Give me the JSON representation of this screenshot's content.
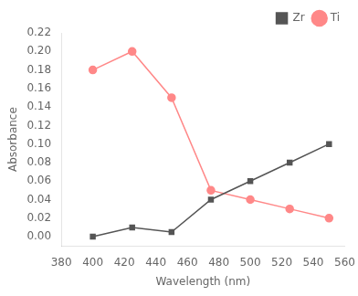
{
  "chart_data": {
    "type": "line",
    "x": [
      400,
      425,
      450,
      475,
      500,
      525,
      550
    ],
    "series": [
      {
        "name": "Zr",
        "color": "#555555",
        "marker": "square",
        "values": [
          0.0,
          0.01,
          0.005,
          0.04,
          0.06,
          0.08,
          0.1
        ]
      },
      {
        "name": "Ti",
        "color": "#ff8888",
        "marker": "circle",
        "values": [
          0.18,
          0.2,
          0.15,
          0.05,
          0.04,
          0.03,
          0.02
        ]
      }
    ],
    "xlabel": "Wavelength (nm)",
    "ylabel": "Absorbance",
    "xlim": [
      380,
      560
    ],
    "xticks": [
      380,
      400,
      420,
      440,
      460,
      480,
      500,
      520,
      540,
      560
    ],
    "ylim": [
      -0.01,
      0.22
    ],
    "yticks": [
      {
        "value": 0.0,
        "label": "0.00"
      },
      {
        "value": 0.02,
        "label": "0.02"
      },
      {
        "value": 0.04,
        "label": "0.04"
      },
      {
        "value": 0.06,
        "label": "0.06"
      },
      {
        "value": 0.08,
        "label": "0.08"
      },
      {
        "value": 0.1,
        "label": "0.10"
      },
      {
        "value": 0.12,
        "label": "0.12"
      },
      {
        "value": 0.14,
        "label": "0.14"
      },
      {
        "value": 0.16,
        "label": "0.16"
      },
      {
        "value": 0.18,
        "label": "0.18"
      },
      {
        "value": 0.2,
        "label": "0.20"
      },
      {
        "value": 0.22,
        "label": "0.22"
      }
    ],
    "grid": false,
    "legend": "upper right"
  }
}
